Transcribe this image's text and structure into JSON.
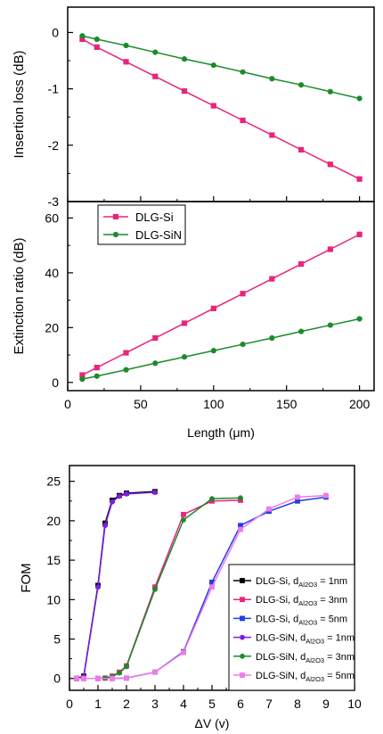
{
  "chart_data": [
    {
      "type": "line",
      "panel": "top",
      "xlabel": "",
      "ylabel": "Insertion loss (dB)",
      "xlim": [
        0,
        210
      ],
      "ylim": [
        -3,
        0.45
      ],
      "xticks": [
        0,
        50,
        100,
        150,
        200
      ],
      "yticks": [
        -3,
        -2,
        -1,
        0
      ],
      "ytick_labels": [
        "-3",
        "-2",
        "-1",
        "0"
      ],
      "series": [
        {
          "name": "DLG-Si",
          "color": "#e8247c",
          "marker": "square",
          "x": [
            10,
            20,
            40,
            60,
            80,
            100,
            120,
            140,
            160,
            180,
            200
          ],
          "y": [
            -0.12,
            -0.26,
            -0.52,
            -0.78,
            -1.04,
            -1.3,
            -1.56,
            -1.82,
            -2.08,
            -2.34,
            -2.6
          ]
        },
        {
          "name": "DLG-SiN",
          "color": "#1a8c2a",
          "marker": "circle",
          "x": [
            10,
            20,
            40,
            60,
            80,
            100,
            120,
            140,
            160,
            180,
            200
          ],
          "y": [
            -0.06,
            -0.12,
            -0.23,
            -0.35,
            -0.47,
            -0.58,
            -0.7,
            -0.82,
            -0.93,
            -1.05,
            -1.17
          ]
        }
      ]
    },
    {
      "type": "line",
      "panel": "middle",
      "xlabel": "Length (μm)",
      "ylabel": "Extinction ratio (dB)",
      "xlim": [
        0,
        210
      ],
      "ylim": [
        -3,
        66
      ],
      "xticks": [
        0,
        50,
        100,
        150,
        200
      ],
      "xtick_labels": [
        "0",
        "50",
        "100",
        "150",
        "200"
      ],
      "yticks": [
        0,
        20,
        40,
        60
      ],
      "ytick_labels": [
        "0",
        "20",
        "40",
        "60"
      ],
      "legend": {
        "placement": "top-left",
        "entries": [
          "DLG-Si",
          "DLG-SiN"
        ]
      },
      "series": [
        {
          "name": "DLG-Si",
          "color": "#e8247c",
          "marker": "square",
          "x": [
            10,
            20,
            40,
            60,
            80,
            100,
            120,
            140,
            160,
            180,
            200
          ],
          "y": [
            2.7,
            5.4,
            10.8,
            16.2,
            21.6,
            27.0,
            32.4,
            37.8,
            43.2,
            48.6,
            54.0
          ]
        },
        {
          "name": "DLG-SiN",
          "color": "#1a8c2a",
          "marker": "circle",
          "x": [
            10,
            20,
            40,
            60,
            80,
            100,
            120,
            140,
            160,
            180,
            200
          ],
          "y": [
            1.2,
            2.3,
            4.6,
            7.0,
            9.3,
            11.6,
            13.9,
            16.2,
            18.6,
            20.9,
            23.2
          ]
        }
      ]
    },
    {
      "type": "line",
      "panel": "bottom",
      "xlabel": "ΔV (v)",
      "ylabel": "FOM",
      "xlim": [
        0,
        10
      ],
      "ylim": [
        -1.5,
        27
      ],
      "xticks": [
        0,
        1,
        2,
        3,
        4,
        5,
        6,
        7,
        8,
        9,
        10
      ],
      "xtick_labels": [
        "0",
        "1",
        "2",
        "3",
        "4",
        "5",
        "6",
        "7",
        "8",
        "9",
        "10"
      ],
      "yticks": [
        0,
        5,
        10,
        15,
        20,
        25
      ],
      "ytick_labels": [
        "0",
        "5",
        "10",
        "15",
        "20",
        "25"
      ],
      "legend": {
        "placement": "bottom-right"
      },
      "series": [
        {
          "label_main": "DLG-Si, d",
          "label_sub": "Al2O3",
          "label_tail": " = 1nm",
          "color": "#000000",
          "marker": "square",
          "x": [
            0.25,
            0.5,
            1.0,
            1.25,
            1.5,
            1.75,
            2.0,
            3.0
          ],
          "y": [
            0,
            0.3,
            11.8,
            19.7,
            22.6,
            23.2,
            23.5,
            23.7
          ]
        },
        {
          "label_main": "DLG-Si, d",
          "label_sub": "Al2O3",
          "label_tail": " = 3nm",
          "color": "#e8247c",
          "marker": "square",
          "x": [
            1.0,
            1.25,
            1.5,
            1.75,
            2.0,
            3.0,
            4.0,
            5.0,
            6.0
          ],
          "y": [
            0,
            0.05,
            0.3,
            0.8,
            1.6,
            11.6,
            20.8,
            22.5,
            22.6
          ]
        },
        {
          "label_main": "DLG-Si, d",
          "label_sub": "Al2O3",
          "label_tail": " = 5nm",
          "color": "#1f3fe6",
          "marker": "square",
          "x": [
            0.25,
            0.5,
            1.0,
            1.5,
            2.0,
            3.0,
            4.0,
            5.0,
            6.0,
            7.0,
            8.0,
            9.0
          ],
          "y": [
            0,
            0,
            0,
            0,
            0.05,
            0.8,
            3.4,
            12.2,
            19.4,
            21.2,
            22.5,
            23.0
          ]
        },
        {
          "label_main": "DLG-SiN, d",
          "label_sub": "Al2O3",
          "label_tail": " = 1nm",
          "color": "#7d1fe0",
          "marker": "circle",
          "x": [
            0.25,
            0.5,
            1.0,
            1.25,
            1.5,
            1.75,
            2.0,
            3.0
          ],
          "y": [
            0,
            0.2,
            11.6,
            19.4,
            22.4,
            23.1,
            23.4,
            23.6
          ]
        },
        {
          "label_main": "DLG-SiN, d",
          "label_sub": "Al2O3",
          "label_tail": " = 3nm",
          "color": "#1a8c2a",
          "marker": "circle",
          "x": [
            1.0,
            1.25,
            1.5,
            1.75,
            2.0,
            3.0,
            4.0,
            5.0,
            6.0
          ],
          "y": [
            0,
            0.05,
            0.25,
            0.7,
            1.5,
            11.3,
            20.1,
            22.8,
            22.9
          ]
        },
        {
          "label_main": "DLG-SiN, d",
          "label_sub": "Al2O3",
          "label_tail": " = 5nm",
          "color": "#f07ae6",
          "marker": "square",
          "x": [
            0.25,
            0.5,
            1.0,
            1.5,
            2.0,
            3.0,
            4.0,
            5.0,
            6.0,
            7.0,
            8.0,
            9.0
          ],
          "y": [
            0,
            0,
            0,
            0,
            0.05,
            0.8,
            3.3,
            11.6,
            18.9,
            21.5,
            23.0,
            23.2
          ]
        }
      ]
    }
  ]
}
